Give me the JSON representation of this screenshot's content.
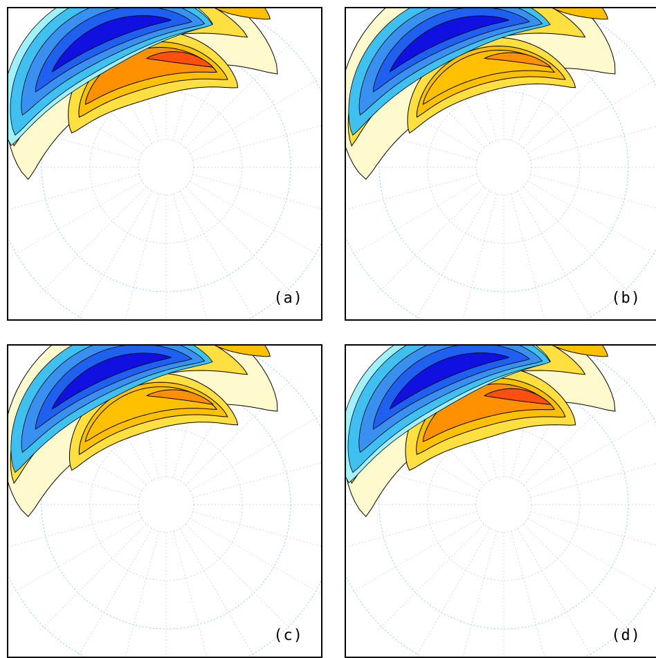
{
  "chart_data": {
    "type": "contour",
    "projection": "polar-stereographic",
    "grid": true,
    "colors": {
      "deep_blue": "#1010e0",
      "blue": "#2060f0",
      "mid_blue": "#3a90f0",
      "light_blue": "#40c0f0",
      "cyan": "#a0f0ff",
      "pale_yellow": "#fffacd",
      "yellow": "#ffe040",
      "gold": "#ffc000",
      "orange": "#ff9000",
      "red_orange": "#ff5010",
      "grid": "#6fc4e0"
    },
    "panels": [
      {
        "label": "(a)",
        "variant": "a"
      },
      {
        "label": "(b)",
        "variant": "b"
      },
      {
        "label": "(c)",
        "variant": "c"
      },
      {
        "label": "(d)",
        "variant": "d"
      }
    ]
  }
}
